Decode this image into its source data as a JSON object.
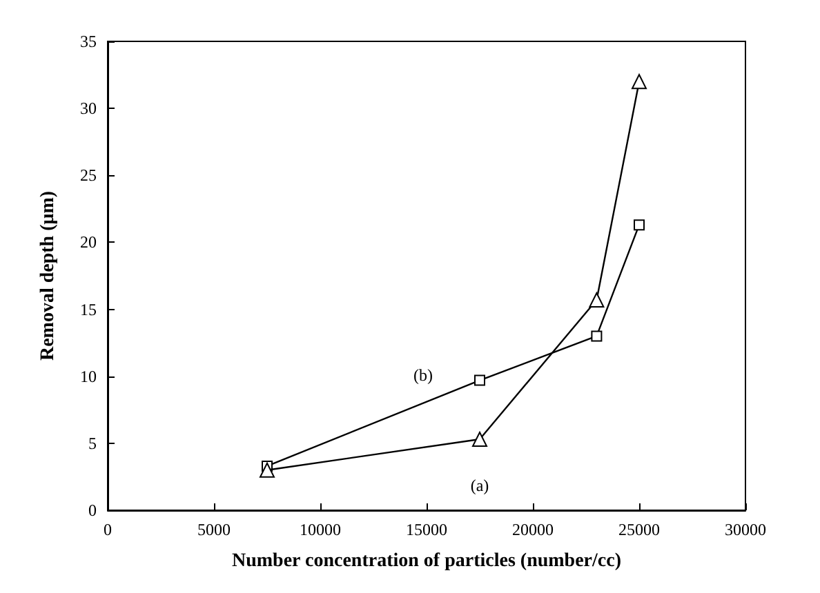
{
  "chart_data": {
    "type": "line",
    "xlabel": "Number concentration of particles (number/cc)",
    "ylabel": "Removal depth (μm)",
    "xlim": [
      0,
      30000
    ],
    "xticks": [
      0,
      5000,
      10000,
      15000,
      20000,
      25000,
      30000
    ],
    "ylim": [
      0,
      35
    ],
    "yticks": [
      0,
      5,
      10,
      15,
      20,
      25,
      30,
      35
    ],
    "series": [
      {
        "name": "(a)",
        "color": "#000000",
        "marker": "triangle",
        "x": [
          7500,
          17500,
          23000,
          25000
        ],
        "values": [
          3.0,
          5.3,
          15.7,
          32.0
        ]
      },
      {
        "name": "(b)",
        "color": "#000000",
        "marker": "square",
        "x": [
          7500,
          17500,
          23000,
          25000
        ],
        "values": [
          3.3,
          9.7,
          13.0,
          21.3
        ]
      }
    ],
    "grid": false,
    "legend": false,
    "line_style": "solid"
  }
}
